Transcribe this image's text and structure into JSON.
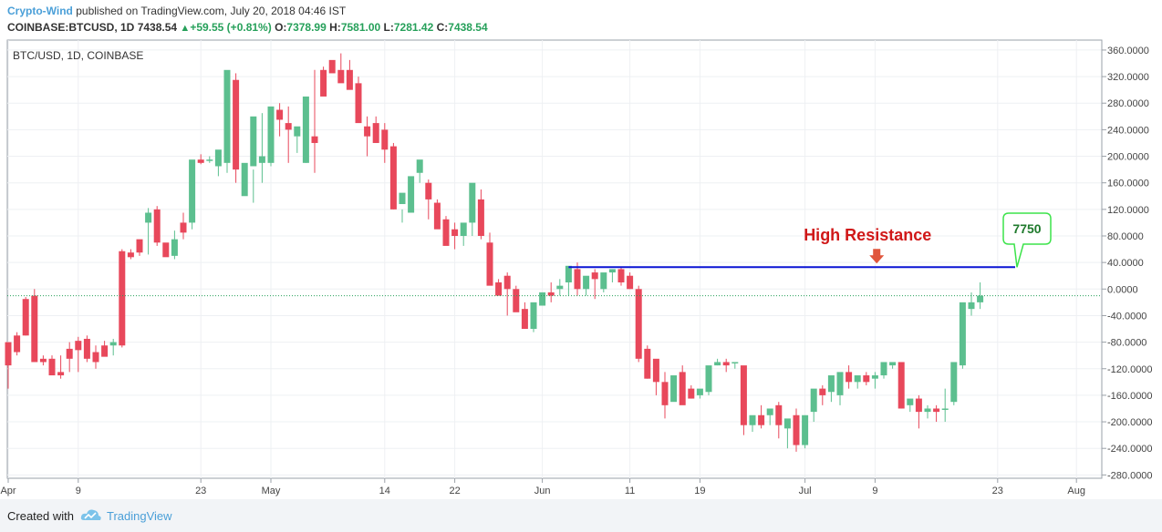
{
  "header": {
    "author": "Crypto-Wind",
    "published_text": " published on TradingView.com, July 20, 2018 04:46 IST"
  },
  "quote": {
    "symbol": "COINBASE:BTCUSD, 1D",
    "last": "7438.54",
    "change": "+59.55 (+0.81%)",
    "open_label": "O:",
    "open": "7378.99",
    "high_label": "H:",
    "high": "7581.00",
    "low_label": "L:",
    "low": "7281.42",
    "close_label": "C:",
    "close": "7438.54"
  },
  "footer": {
    "created_with": "Created with",
    "brand": "TradingView"
  },
  "colors": {
    "up": "#5cbf8f",
    "down": "#e8485b",
    "resistance": "#0a14d4",
    "annotation": "#d01818",
    "callout_border": "#3ce34a",
    "callout_text": "#1f7a2c"
  },
  "chart_data": {
    "type": "candlestick",
    "title": "BTC/USD, 1D, COINBASE",
    "y_ticks": [
      "360.0000",
      "320.0000",
      "280.0000",
      "240.0000",
      "200.0000",
      "160.0000",
      "120.0000",
      "80.0000",
      "40.0000",
      "0.0000",
      "-40.0000",
      "-80.0000",
      "-120.0000",
      "-160.0000",
      "-200.0000",
      "-240.0000",
      "-280.0000"
    ],
    "ylim": [
      -285,
      375
    ],
    "x_ticks": [
      {
        "label": "Apr",
        "day": 0
      },
      {
        "label": "9",
        "day": 8
      },
      {
        "label": "23",
        "day": 22
      },
      {
        "label": "May",
        "day": 30
      },
      {
        "label": "14",
        "day": 43
      },
      {
        "label": "22",
        "day": 51
      },
      {
        "label": "Jun",
        "day": 61
      },
      {
        "label": "11",
        "day": 71
      },
      {
        "label": "19",
        "day": 79
      },
      {
        "label": "Jul",
        "day": 91
      },
      {
        "label": "9",
        "day": 99
      },
      {
        "label": "23",
        "day": 113
      },
      {
        "label": "Aug",
        "day": 122
      }
    ],
    "last_price_level": -10,
    "resistance": {
      "label": "High Resistance",
      "level": 33,
      "from_day": 64,
      "to_day": 115
    },
    "callout": {
      "label": "7750"
    },
    "candles": [
      [
        -80,
        -85,
        -115,
        -150
      ],
      [
        -70,
        -65,
        -95,
        -100
      ],
      [
        -15,
        -12,
        -70,
        -70
      ],
      [
        -10,
        0,
        -110,
        -105
      ],
      [
        -105,
        -100,
        -110,
        -115
      ],
      [
        -105,
        -100,
        -130,
        -130
      ],
      [
        -125,
        -100,
        -130,
        -135
      ],
      [
        -90,
        -80,
        -105,
        -125
      ],
      [
        -78,
        -72,
        -92,
        -125
      ],
      [
        -75,
        -70,
        -105,
        -110
      ],
      [
        -95,
        -85,
        -110,
        -120
      ],
      [
        -85,
        -78,
        -102,
        -95
      ],
      [
        -85,
        -75,
        -80,
        -100
      ],
      [
        57,
        60,
        -85,
        -88
      ],
      [
        55,
        60,
        48,
        45
      ],
      [
        75,
        72,
        55,
        50
      ],
      [
        100,
        122,
        115,
        52
      ],
      [
        120,
        125,
        70,
        65
      ],
      [
        70,
        52,
        48,
        50
      ],
      [
        50,
        88,
        75,
        45
      ],
      [
        100,
        115,
        85,
        75
      ],
      [
        100,
        180,
        195,
        90
      ],
      [
        195,
        203,
        190,
        188
      ],
      [
        195,
        200,
        195,
        190
      ],
      [
        185,
        200,
        210,
        170
      ],
      [
        190,
        320,
        330,
        175
      ],
      [
        315,
        325,
        180,
        160
      ],
      [
        140,
        155,
        190,
        165
      ],
      [
        185,
        180,
        260,
        130
      ],
      [
        190,
        265,
        200,
        160
      ],
      [
        190,
        270,
        275,
        185
      ],
      [
        270,
        280,
        255,
        230
      ],
      [
        250,
        275,
        240,
        190
      ],
      [
        230,
        230,
        245,
        205
      ],
      [
        190,
        210,
        290,
        190
      ],
      [
        230,
        330,
        220,
        175
      ],
      [
        330,
        335,
        290,
        310
      ],
      [
        345,
        340,
        325,
        330
      ],
      [
        330,
        355,
        310,
        330
      ],
      [
        330,
        345,
        300,
        310
      ],
      [
        310,
        320,
        250,
        255
      ],
      [
        245,
        260,
        230,
        200
      ],
      [
        250,
        260,
        220,
        220
      ],
      [
        240,
        250,
        210,
        190
      ],
      [
        215,
        220,
        120,
        120
      ],
      [
        128,
        120,
        145,
        100
      ],
      [
        115,
        140,
        170,
        120
      ],
      [
        175,
        180,
        195,
        160
      ],
      [
        160,
        165,
        135,
        105
      ],
      [
        130,
        135,
        90,
        110
      ],
      [
        105,
        110,
        65,
        70
      ],
      [
        90,
        100,
        80,
        60
      ],
      [
        80,
        95,
        100,
        65
      ],
      [
        100,
        140,
        160,
        80
      ],
      [
        135,
        150,
        80,
        75
      ],
      [
        70,
        85,
        5,
        25
      ],
      [
        10,
        15,
        -10,
        -10
      ],
      [
        20,
        25,
        0,
        -40
      ],
      [
        0,
        5,
        -35,
        -30
      ],
      [
        -30,
        -20,
        -60,
        -60
      ],
      [
        -60,
        -55,
        -20,
        -65
      ],
      [
        -25,
        -15,
        -5,
        -10
      ],
      [
        -5,
        10,
        -10,
        -20
      ],
      [
        0,
        15,
        5,
        -10
      ],
      [
        10,
        20,
        35,
        -10
      ],
      [
        30,
        40,
        0,
        -10
      ],
      [
        0,
        5,
        20,
        -10
      ],
      [
        25,
        30,
        15,
        -15
      ],
      [
        0,
        10,
        25,
        -5
      ],
      [
        25,
        30,
        30,
        10
      ],
      [
        30,
        32,
        10,
        5
      ],
      [
        20,
        25,
        0,
        0
      ],
      [
        0,
        5,
        -105,
        -110
      ],
      [
        -90,
        -85,
        -135,
        -135
      ],
      [
        -105,
        -110,
        -140,
        -160
      ],
      [
        -140,
        -125,
        -175,
        -195
      ],
      [
        -170,
        -165,
        -130,
        -140
      ],
      [
        -125,
        -115,
        -175,
        -160
      ],
      [
        -150,
        -145,
        -165,
        -165
      ],
      [
        -160,
        -158,
        -150,
        -165
      ],
      [
        -155,
        -150,
        -115,
        -160
      ],
      [
        -115,
        -105,
        -110,
        -115
      ],
      [
        -110,
        -105,
        -115,
        -125
      ],
      [
        -110,
        -112,
        -110,
        -120
      ],
      [
        -115,
        -120,
        -205,
        -220
      ],
      [
        -205,
        -195,
        -190,
        -215
      ],
      [
        -190,
        -175,
        -205,
        -210
      ],
      [
        -190,
        -188,
        -180,
        -205
      ],
      [
        -175,
        -170,
        -205,
        -225
      ],
      [
        -210,
        -205,
        -195,
        -240
      ],
      [
        -190,
        -180,
        -235,
        -245
      ],
      [
        -235,
        -220,
        -190,
        -240
      ],
      [
        -185,
        -175,
        -150,
        -200
      ],
      [
        -150,
        -145,
        -160,
        -175
      ],
      [
        -155,
        -150,
        -130,
        -170
      ],
      [
        -160,
        -135,
        -125,
        -175
      ],
      [
        -125,
        -115,
        -140,
        -150
      ],
      [
        -140,
        -135,
        -130,
        -150
      ],
      [
        -130,
        -125,
        -140,
        -145
      ],
      [
        -135,
        -125,
        -130,
        -150
      ],
      [
        -130,
        -120,
        -110,
        -135
      ],
      [
        -115,
        -115,
        -110,
        -120
      ],
      [
        -110,
        -118,
        -180,
        -180
      ],
      [
        -175,
        -170,
        -165,
        -185
      ],
      [
        -165,
        -160,
        -185,
        -210
      ],
      [
        -185,
        -175,
        -180,
        -195
      ],
      [
        -180,
        -175,
        -185,
        -200
      ],
      [
        -180,
        -150,
        -180,
        -200
      ],
      [
        -170,
        -165,
        -110,
        -175
      ],
      [
        -115,
        -105,
        -20,
        -120
      ],
      [
        -30,
        -5,
        -20,
        -40
      ],
      [
        -20,
        10,
        -10,
        -30
      ]
    ]
  }
}
